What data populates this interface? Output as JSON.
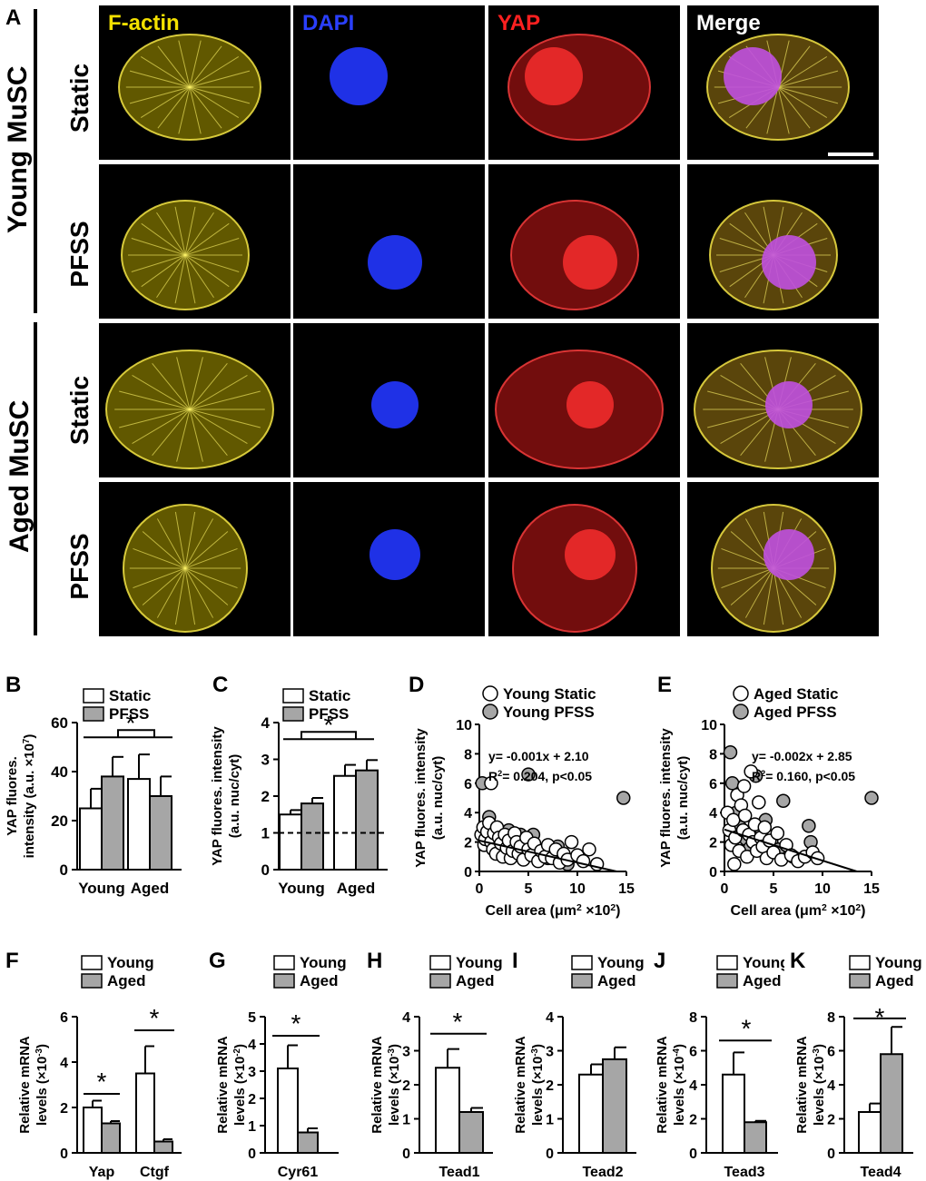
{
  "panel_a": {
    "letter": "A",
    "columns": [
      "F-actin",
      "DAPI",
      "YAP",
      "Merge"
    ],
    "column_colors": [
      "#f3e000",
      "#2a3fff",
      "#ff2020",
      "#ffffff"
    ],
    "groups": [
      "Young MuSC",
      "Aged MuSC"
    ],
    "rows": [
      "Static",
      "PFSS",
      "Static",
      "PFSS"
    ]
  },
  "chart_data": [
    {
      "id": "B",
      "type": "bar",
      "ylabel": "YAP fluores. intensity (a.u. ×10^7)",
      "ylabel_lines": [
        "YAP fluores.",
        "intensity (a.u. ×10"
      ],
      "ylabel_sup": "7",
      "categories": [
        "Young",
        "Aged"
      ],
      "series": [
        {
          "name": "Static",
          "color": "#ffffff",
          "values": [
            25,
            37
          ],
          "errors": [
            8,
            10
          ]
        },
        {
          "name": "PFSS",
          "color": "#a6a6a6",
          "values": [
            38,
            30
          ],
          "errors": [
            8,
            8
          ]
        }
      ],
      "ylim": [
        0,
        60
      ],
      "yticks": [
        0,
        20,
        40,
        60
      ],
      "significance": "*"
    },
    {
      "id": "C",
      "type": "bar",
      "ylabel": "YAP fluores. intensity (a.u. nuc/cyt)",
      "ylabel_lines": [
        "YAP fluores. intensity",
        "(a.u. nuc/cyt)"
      ],
      "categories": [
        "Young",
        "Aged"
      ],
      "series": [
        {
          "name": "Static",
          "color": "#ffffff",
          "values": [
            1.5,
            2.55
          ],
          "errors": [
            0.12,
            0.3
          ]
        },
        {
          "name": "PFSS",
          "color": "#a6a6a6",
          "values": [
            1.8,
            2.7
          ],
          "errors": [
            0.15,
            0.28
          ]
        }
      ],
      "ylim": [
        0,
        4
      ],
      "yticks": [
        0,
        1,
        2,
        3,
        4
      ],
      "reference_line": 1,
      "significance": "*"
    },
    {
      "id": "D",
      "type": "scatter",
      "xlabel": "Cell area (μm² ×10²)",
      "xlabel_parts": [
        "Cell area (",
        "μm",
        "2",
        " ×10",
        "2",
        ")"
      ],
      "ylabel_lines": [
        "YAP fluores. intensity",
        "(a.u. nuc/cyt)"
      ],
      "xlim": [
        0,
        15
      ],
      "xticks": [
        0,
        5,
        10,
        15
      ],
      "ylim": [
        0,
        10
      ],
      "yticks": [
        0,
        2,
        4,
        6,
        8,
        10
      ],
      "equation": "y= -0.001x + 2.10",
      "r2_text": [
        "R",
        "2",
        "= 0.204, p<0.05"
      ],
      "fit_line": [
        [
          0,
          2.1
        ],
        [
          14,
          0
        ]
      ],
      "series": [
        {
          "name": "Young Static",
          "color": "#ffffff",
          "points": [
            [
              0.2,
              2.5
            ],
            [
              0.4,
              3.0
            ],
            [
              0.5,
              1.8
            ],
            [
              0.6,
              2.2
            ],
            [
              0.8,
              2.7
            ],
            [
              1.0,
              3.3
            ],
            [
              1.2,
              2.0
            ],
            [
              1.4,
              1.5
            ],
            [
              1.5,
              2.6
            ],
            [
              1.7,
              1.2
            ],
            [
              1.8,
              3.0
            ],
            [
              2.0,
              2.3
            ],
            [
              2.2,
              1.9
            ],
            [
              2.4,
              1.0
            ],
            [
              2.6,
              2.5
            ],
            [
              2.8,
              1.6
            ],
            [
              3.0,
              2.1
            ],
            [
              3.2,
              0.9
            ],
            [
              3.4,
              1.4
            ],
            [
              3.6,
              2.6
            ],
            [
              3.8,
              2.0
            ],
            [
              4.0,
              1.2
            ],
            [
              4.2,
              1.7
            ],
            [
              4.5,
              0.8
            ],
            [
              4.8,
              2.3
            ],
            [
              5.0,
              1.5
            ],
            [
              5.3,
              1.1
            ],
            [
              5.6,
              1.9
            ],
            [
              6.0,
              0.7
            ],
            [
              6.3,
              1.4
            ],
            [
              6.7,
              1.0
            ],
            [
              7.0,
              1.8
            ],
            [
              7.4,
              0.9
            ],
            [
              7.8,
              1.5
            ],
            [
              8.2,
              0.6
            ],
            [
              8.6,
              1.2
            ],
            [
              9.0,
              0.8
            ],
            [
              9.4,
              2.0
            ],
            [
              10.0,
              1.1
            ],
            [
              10.6,
              0.7
            ],
            [
              11.2,
              1.5
            ],
            [
              12.0,
              0.5
            ],
            [
              1.2,
              6.0
            ]
          ]
        },
        {
          "name": "Young PFSS",
          "color": "#a6a6a6",
          "points": [
            [
              0.3,
              6.0
            ],
            [
              0.6,
              2.9
            ],
            [
              1.0,
              3.7
            ],
            [
              1.5,
              2.5
            ],
            [
              2.0,
              1.8
            ],
            [
              2.5,
              1.3
            ],
            [
              3.0,
              2.8
            ],
            [
              3.6,
              1.9
            ],
            [
              4.2,
              2.5
            ],
            [
              5.0,
              6.6
            ],
            [
              5.5,
              2.5
            ],
            [
              6.2,
              1.4
            ],
            [
              7.0,
              0.9
            ],
            [
              8.0,
              1.7
            ],
            [
              9.0,
              0.5
            ],
            [
              14.7,
              5.0
            ]
          ]
        }
      ]
    },
    {
      "id": "E",
      "type": "scatter",
      "xlabel": "Cell area (μm² ×10²)",
      "xlabel_parts": [
        "Cell area (",
        "μm",
        "2",
        " ×10",
        "2",
        ")"
      ],
      "ylabel_lines": [
        "YAP fluores. intensity",
        "(a.u. nuc/cyt)"
      ],
      "xlim": [
        0,
        15
      ],
      "xticks": [
        0,
        5,
        10,
        15
      ],
      "ylim": [
        0,
        10
      ],
      "yticks": [
        0,
        2,
        4,
        6,
        8,
        10
      ],
      "equation": "y= -0.002x + 2.85",
      "r2_text": [
        "R",
        "2",
        "= 0.160, p<0.05"
      ],
      "fit_line": [
        [
          0,
          2.85
        ],
        [
          13.5,
          0
        ]
      ],
      "series": [
        {
          "name": "Aged Static",
          "color": "#ffffff",
          "points": [
            [
              0.3,
              4.0
            ],
            [
              0.5,
              2.8
            ],
            [
              0.7,
              1.8
            ],
            [
              0.9,
              3.5
            ],
            [
              1.1,
              2.3
            ],
            [
              1.3,
              5.2
            ],
            [
              1.5,
              1.4
            ],
            [
              1.7,
              4.5
            ],
            [
              1.9,
              2.8
            ],
            [
              2.1,
              3.8
            ],
            [
              2.3,
              1.0
            ],
            [
              2.5,
              2.5
            ],
            [
              2.7,
              6.8
            ],
            [
              2.9,
              2.0
            ],
            [
              3.1,
              3.2
            ],
            [
              3.3,
              1.4
            ],
            [
              3.5,
              4.7
            ],
            [
              3.7,
              2.3
            ],
            [
              3.9,
              1.7
            ],
            [
              4.1,
              3.0
            ],
            [
              4.3,
              0.9
            ],
            [
              4.6,
              2.1
            ],
            [
              5.0,
              1.3
            ],
            [
              5.4,
              2.6
            ],
            [
              5.8,
              0.8
            ],
            [
              6.3,
              1.8
            ],
            [
              6.8,
              1.1
            ],
            [
              7.5,
              0.7
            ],
            [
              8.2,
              1.0
            ],
            [
              9.0,
              1.3
            ],
            [
              9.5,
              0.9
            ],
            [
              1.0,
              0.5
            ],
            [
              2.0,
              5.8
            ]
          ]
        },
        {
          "name": "Aged PFSS",
          "color": "#a6a6a6",
          "points": [
            [
              0.6,
              8.1
            ],
            [
              0.8,
              6.0
            ],
            [
              1.2,
              4.0
            ],
            [
              1.6,
              3.0
            ],
            [
              2.2,
              2.2
            ],
            [
              2.6,
              1.6
            ],
            [
              3.2,
              6.5
            ],
            [
              3.8,
              2.8
            ],
            [
              4.2,
              3.5
            ],
            [
              4.8,
              2.0
            ],
            [
              5.5,
              1.5
            ],
            [
              6.0,
              4.8
            ],
            [
              7.0,
              1.0
            ],
            [
              8.6,
              3.1
            ],
            [
              8.8,
              2.0
            ],
            [
              15.0,
              5.0
            ]
          ]
        }
      ]
    },
    {
      "id": "F",
      "type": "bar",
      "ylabel_lines": [
        "Relative mRNA",
        "levels (×10"
      ],
      "ylabel_sup": "-3",
      "categories": [
        "Yap",
        "Ctgf"
      ],
      "series": [
        {
          "name": "Young",
          "color": "#ffffff",
          "values": [
            2.0,
            3.5
          ],
          "errors": [
            0.3,
            1.2
          ]
        },
        {
          "name": "Aged",
          "color": "#a6a6a6",
          "values": [
            1.3,
            0.5
          ],
          "errors": [
            0.1,
            0.1
          ]
        }
      ],
      "ylim": [
        0,
        6
      ],
      "yticks": [
        0,
        2,
        4,
        6
      ],
      "significance": [
        "*",
        "*"
      ]
    },
    {
      "id": "G",
      "type": "bar",
      "ylabel_lines": [
        "Relative mRNA",
        "levels (×10"
      ],
      "ylabel_sup": "-2",
      "categories": [
        "Cyr61"
      ],
      "series": [
        {
          "name": "Young",
          "color": "#ffffff",
          "values": [
            3.1
          ],
          "errors": [
            0.85
          ]
        },
        {
          "name": "Aged",
          "color": "#a6a6a6",
          "values": [
            0.75
          ],
          "errors": [
            0.15
          ]
        }
      ],
      "ylim": [
        0,
        5
      ],
      "yticks": [
        0,
        1,
        2,
        3,
        4,
        5
      ],
      "significance": [
        "*"
      ]
    },
    {
      "id": "H",
      "type": "bar",
      "ylabel_lines": [
        "Relative mRNA",
        "levels (×10"
      ],
      "ylabel_sup": "-3",
      "categories": [
        "Tead1"
      ],
      "series": [
        {
          "name": "Young",
          "color": "#ffffff",
          "values": [
            2.5
          ],
          "errors": [
            0.55
          ]
        },
        {
          "name": "Aged",
          "color": "#a6a6a6",
          "values": [
            1.2
          ],
          "errors": [
            0.12
          ]
        }
      ],
      "ylim": [
        0,
        4
      ],
      "yticks": [
        0,
        1,
        2,
        3,
        4
      ],
      "significance": [
        "*"
      ]
    },
    {
      "id": "I",
      "type": "bar",
      "ylabel_lines": [
        "Relative mRNA",
        "levels (×10"
      ],
      "ylabel_sup": "-3",
      "categories": [
        "Tead2"
      ],
      "series": [
        {
          "name": "Young",
          "color": "#ffffff",
          "values": [
            2.3
          ],
          "errors": [
            0.3
          ]
        },
        {
          "name": "Aged",
          "color": "#a6a6a6",
          "values": [
            2.75
          ],
          "errors": [
            0.35
          ]
        }
      ],
      "ylim": [
        0,
        4
      ],
      "yticks": [
        0,
        1,
        2,
        3,
        4
      ],
      "significance": []
    },
    {
      "id": "J",
      "type": "bar",
      "ylabel_lines": [
        "Relative mRNA",
        "levels (×10"
      ],
      "ylabel_sup": "-4",
      "categories": [
        "Tead3"
      ],
      "series": [
        {
          "name": "Young",
          "color": "#ffffff",
          "values": [
            4.6
          ],
          "errors": [
            1.3
          ]
        },
        {
          "name": "Aged",
          "color": "#a6a6a6",
          "values": [
            1.8
          ],
          "errors": [
            0.08
          ]
        }
      ],
      "ylim": [
        0,
        8
      ],
      "yticks": [
        0,
        2,
        4,
        6,
        8
      ],
      "significance": [
        "*"
      ]
    },
    {
      "id": "K",
      "type": "bar",
      "ylabel_lines": [
        "Relative mRNA",
        "levels (×10"
      ],
      "ylabel_sup": "-3",
      "categories": [
        "Tead4"
      ],
      "series": [
        {
          "name": "Young",
          "color": "#ffffff",
          "values": [
            2.4
          ],
          "errors": [
            0.5
          ]
        },
        {
          "name": "Aged",
          "color": "#a6a6a6",
          "values": [
            5.8
          ],
          "errors": [
            1.6
          ]
        }
      ],
      "ylim": [
        0,
        8
      ],
      "yticks": [
        0,
        2,
        4,
        6,
        8
      ],
      "significance": [
        "*"
      ]
    }
  ]
}
